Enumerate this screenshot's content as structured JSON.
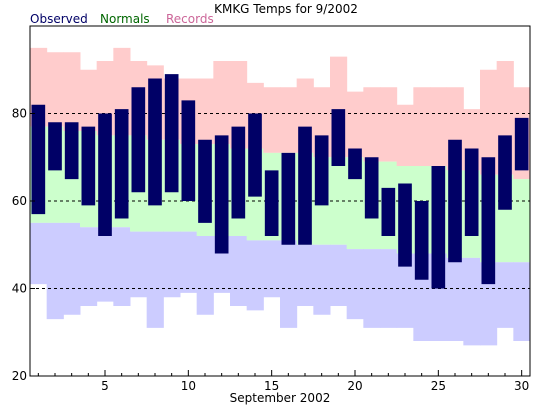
{
  "chart_data": {
    "type": "bar",
    "title": "KMKG Temps for 9/2002",
    "xlabel": "September 2002",
    "ylabel": "",
    "legend": [
      {
        "label": "Observed",
        "color": "#000066"
      },
      {
        "label": "Normals",
        "color": "#006600"
      },
      {
        "label": "Records",
        "color": "#cc6699"
      }
    ],
    "colors": {
      "observed": "#000066",
      "normals": "#ccffcc",
      "record_high": "#ffcccc",
      "record_low": "#ccccff",
      "gridline": "#000000"
    },
    "ylim": [
      20,
      100
    ],
    "yticks": [
      20,
      40,
      60,
      80
    ],
    "gridlines_y": [
      40,
      60,
      80
    ],
    "xlim": [
      0.5,
      30.5
    ],
    "xticks": [
      5,
      10,
      15,
      20,
      25,
      30
    ],
    "days": [
      1,
      2,
      3,
      4,
      5,
      6,
      7,
      8,
      9,
      10,
      11,
      12,
      13,
      14,
      15,
      16,
      17,
      18,
      19,
      20,
      21,
      22,
      23,
      24,
      25,
      26,
      27,
      28,
      29,
      30
    ],
    "series": [
      {
        "name": "Observed High",
        "values": [
          82,
          78,
          78,
          77,
          80,
          81,
          86,
          88,
          89,
          83,
          74,
          75,
          77,
          80,
          67,
          71,
          77,
          75,
          81,
          72,
          70,
          63,
          64,
          60,
          68,
          74,
          72,
          70,
          75,
          79
        ]
      },
      {
        "name": "Observed Low",
        "values": [
          57,
          67,
          65,
          59,
          52,
          56,
          62,
          59,
          62,
          60,
          55,
          48,
          56,
          61,
          52,
          50,
          50,
          59,
          68,
          65,
          56,
          52,
          45,
          42,
          40,
          46,
          52,
          41,
          58,
          67
        ]
      },
      {
        "name": "Normal High",
        "values": [
          77,
          77,
          76,
          76,
          75,
          75,
          75,
          74,
          74,
          73,
          73,
          73,
          72,
          72,
          71,
          71,
          71,
          70,
          70,
          70,
          69,
          69,
          68,
          68,
          68,
          67,
          67,
          66,
          66,
          65
        ]
      },
      {
        "name": "Normal Low",
        "values": [
          55,
          55,
          55,
          54,
          54,
          54,
          53,
          53,
          53,
          53,
          52,
          52,
          52,
          51,
          51,
          51,
          50,
          50,
          50,
          49,
          49,
          49,
          48,
          48,
          48,
          47,
          47,
          46,
          46,
          46
        ]
      },
      {
        "name": "Record High",
        "values": [
          95,
          94,
          94,
          90,
          92,
          95,
          92,
          91,
          88,
          88,
          88,
          92,
          92,
          87,
          86,
          86,
          88,
          86,
          93,
          85,
          86,
          86,
          82,
          86,
          86,
          86,
          81,
          90,
          92,
          86
        ]
      },
      {
        "name": "Record Low",
        "values": [
          41,
          33,
          34,
          36,
          37,
          36,
          38,
          31,
          38,
          39,
          34,
          39,
          36,
          35,
          38,
          31,
          36,
          34,
          36,
          33,
          31,
          31,
          31,
          28,
          28,
          28,
          27,
          27,
          31,
          28
        ]
      }
    ]
  }
}
